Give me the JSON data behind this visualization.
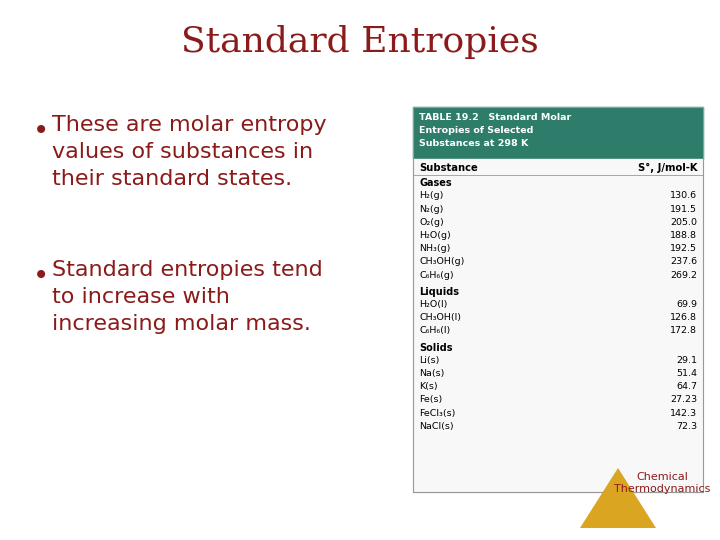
{
  "title": "Standard Entropies",
  "title_color": "#8B1A1A",
  "title_fontsize": 26,
  "bg_color": "#FFFFFF",
  "bullet_color": "#8B1A1A",
  "bullet_fontsize": 16,
  "bullets": [
    "These are molar entropy\nvalues of substances in\ntheir standard states.",
    "Standard entropies tend\nto increase with\nincreasing molar mass."
  ],
  "table_header_bg": "#2E7D6B",
  "table_header_text": "#FFFFFF",
  "table_header": "TABLE 19.2   Standard Molar\nEntropies of Selected\nSubstances at 298 K",
  "col_headers": [
    "Substance",
    "S°, J/mol-K"
  ],
  "sections": [
    {
      "name": "Gases",
      "rows": [
        [
          "H₂(g)",
          "130.6"
        ],
        [
          "N₂(g)",
          "191.5"
        ],
        [
          "O₂(g)",
          "205.0"
        ],
        [
          "H₂O(g)",
          "188.8"
        ],
        [
          "NH₃(g)",
          "192.5"
        ],
        [
          "CH₃OH(g)",
          "237.6"
        ],
        [
          "C₆H₆(g)",
          "269.2"
        ]
      ]
    },
    {
      "name": "Liquids",
      "rows": [
        [
          "H₂O(l)",
          "69.9"
        ],
        [
          "CH₃OH(l)",
          "126.8"
        ],
        [
          "C₆H₆(l)",
          "172.8"
        ]
      ]
    },
    {
      "name": "Solids",
      "rows": [
        [
          "Li(s)",
          "29.1"
        ],
        [
          "Na(s)",
          "51.4"
        ],
        [
          "K(s)",
          "64.7"
        ],
        [
          "Fe(s)",
          "27.23"
        ],
        [
          "FeCl₃(s)",
          "142.3"
        ],
        [
          "NaCl(s)",
          "72.3"
        ]
      ]
    }
  ],
  "triangle_color": "#DAA520",
  "chem_thermo_color": "#8B1A1A",
  "footer_text1": "Chemical",
  "footer_text2": "Thermodynamics"
}
